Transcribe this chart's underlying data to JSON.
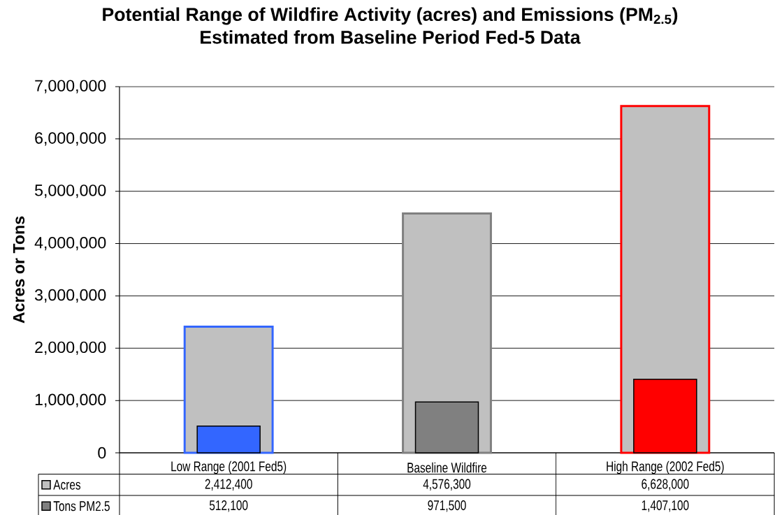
{
  "chart_data": {
    "type": "bar",
    "title": "Potential Range of Wildfire Activity (acres) and Emissions (PM$_{2.5}$)",
    "subtitle": "Estimated from Baseline Period Fed-5 Data",
    "ylabel": "Acres or Tons",
    "categories": [
      "Low Range (2001 Fed5)",
      "Baseline Wildfire",
      "High Range (2002 Fed5)"
    ],
    "series": [
      {
        "name": "Acres",
        "color": "#c0c0c0",
        "values": [
          2412400,
          4576300,
          6628000
        ],
        "value_labels": [
          "2,412,400",
          "4,576,300",
          "6,628,000"
        ]
      },
      {
        "name": "Tons PM2.5",
        "color": "#808080",
        "colors": [
          "#3366ff",
          "#808080",
          "#ff0000"
        ],
        "values": [
          512100,
          971500,
          1407100
        ],
        "value_labels": [
          "512,100",
          "971,500",
          "1,407,100"
        ]
      }
    ],
    "ylim": [
      0,
      7000000
    ],
    "yticks": [
      0,
      {
        "value": 1000000,
        "label": "1,000,000"
      },
      {
        "value": 2000000,
        "label": "2,000,000"
      },
      {
        "value": 3000000,
        "label": "3,000,000"
      },
      {
        "value": 4000000,
        "label": "4,000,000"
      },
      {
        "value": 5000000,
        "label": "5,000,000"
      },
      {
        "value": 6000000,
        "label": "6,000,000"
      },
      {
        "value": 7000000,
        "label": "7,000,000"
      }
    ],
    "grid": "y",
    "legend": "bottom"
  }
}
